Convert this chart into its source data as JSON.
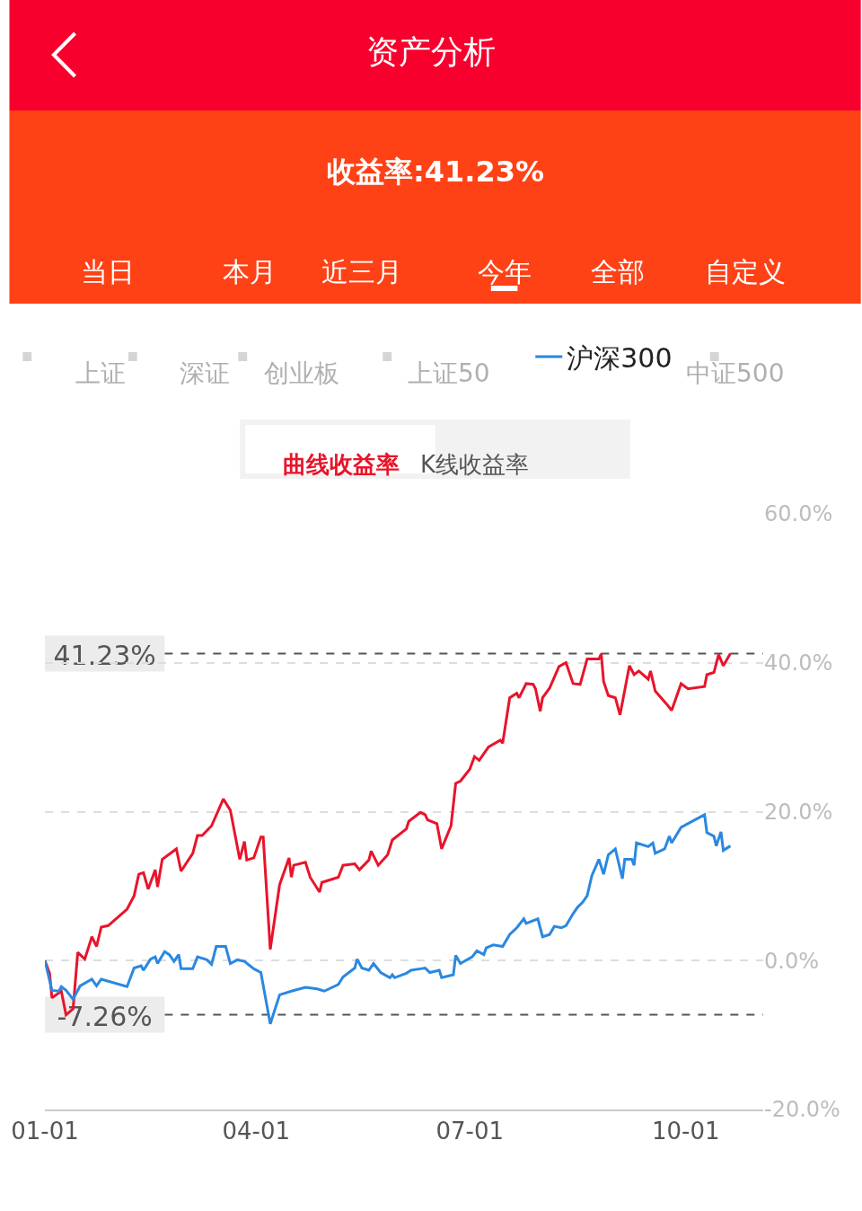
{
  "chart_data": {
    "type": "line",
    "title": "资产分析",
    "subtitle": "收益率:41.23%",
    "annotations": [
      "当日",
      "本月",
      "近三月",
      "今年",
      "全部",
      "自定义",
      "上证",
      "深证",
      "创业板",
      "上证50",
      "中证500",
      "曲线收益率",
      "K线收益率"
    ],
    "series": [
      {
        "color": "#e8142a",
        "x": [
          "--01-01",
          "--01-03",
          "--01-04",
          "--01-08",
          "--01-10",
          "--01-13",
          "--01-15",
          "--01-18",
          "--01-21",
          "--01-23",
          "--01-25",
          "--01-28",
          "--02-05",
          "--02-08",
          "--02-10",
          "--02-12",
          "--02-14",
          "--02-17",
          "--02-18",
          "--02-20",
          "--02-26",
          "--02-28",
          "--03-05",
          "--03-07",
          "--03-09",
          "--03-13",
          "--03-18",
          "--03-21",
          "--03-25",
          "--03-27",
          "--03-28",
          "--03-31",
          "--04-03",
          "--04-04",
          "--04-07",
          "--04-11",
          "--04-15",
          "--04-16",
          "--04-17",
          "--04-22",
          "--04-24",
          "--04-28",
          "--04-29",
          "--05-06",
          "--05-08",
          "--05-13",
          "--05-15",
          "--05-19",
          "--05-20",
          "--05-23",
          "--05-27",
          "--05-29",
          "--06-04",
          "--06-05",
          "--06-10",
          "--06-12",
          "--06-13",
          "--06-17",
          "--06-19",
          "--06-23",
          "--06-25",
          "--06-27",
          "--07-01",
          "--07-03",
          "--07-05",
          "--07-09",
          "--07-14",
          "--07-15",
          "--07-18",
          "--07-21",
          "--07-22",
          "--07-25",
          "--07-28",
          "--07-29",
          "--07-31",
          "--08-01",
          "--08-04",
          "--08-08",
          "--08-11",
          "--08-14",
          "--08-17",
          "--08-20",
          "--08-25",
          "--08-26",
          "--08-27",
          "--08-29",
          "--09-01",
          "--09-03",
          "--09-07",
          "--09-09",
          "--09-11",
          "--09-15",
          "--09-16",
          "--09-18",
          "--09-23",
          "--09-25",
          "--09-29",
          "--10-02",
          "--10-09",
          "--10-10",
          "--10-13",
          "--10-15",
          "--10-17",
          "--10-20"
        ],
        "values": [
          0,
          -1.7,
          -5.0,
          -4.1,
          -7.3,
          -6.5,
          1.1,
          0.2,
          3.2,
          1.9,
          4.5,
          4.7,
          6.9,
          8.7,
          11.6,
          11.8,
          9.6,
          12.2,
          9.9,
          13.6,
          15.0,
          12.0,
          14.4,
          16.8,
          16.8,
          18.1,
          21.7,
          20.2,
          13.6,
          16.0,
          13.5,
          13.8,
          16.6,
          16.6,
          1.5,
          10.2,
          13.8,
          11.2,
          12.8,
          13.2,
          11.2,
          9.2,
          10.5,
          11.2,
          12.8,
          13.0,
          12.2,
          13.5,
          14.7,
          12.8,
          14.2,
          16.2,
          17.7,
          18.7,
          19.9,
          19.6,
          18.9,
          18.4,
          15.0,
          18.1,
          23.8,
          24.1,
          25.7,
          27.4,
          26.9,
          28.7,
          29.6,
          29.2,
          35.3,
          35.9,
          35.3,
          37.2,
          37.1,
          36.5,
          33.5,
          35.3,
          36.6,
          39.5,
          40.0,
          37.2,
          37.1,
          40.5,
          40.5,
          41.2,
          37.5,
          35.6,
          35.3,
          33.0,
          39.6,
          38.4,
          38.9,
          37.8,
          38.9,
          36.2,
          34.4,
          33.6,
          37.2,
          36.5,
          36.8,
          38.4,
          38.7,
          41.1,
          39.6,
          41.23
        ]
      },
      {
        "name": "沪深300",
        "color": "#2a88e0",
        "x": [
          "--01-01",
          "--01-04",
          "--01-07",
          "--01-08",
          "--01-10",
          "--01-13",
          "--01-16",
          "--01-21",
          "--01-23",
          "--01-25",
          "--02-05",
          "--02-08",
          "--02-11",
          "--02-12",
          "--02-15",
          "--02-17",
          "--02-18",
          "--02-21",
          "--02-23",
          "--02-25",
          "--02-27",
          "--02-28",
          "--03-05",
          "--03-07",
          "--03-11",
          "--03-13",
          "--03-15",
          "--03-19",
          "--03-21",
          "--03-24",
          "--03-27",
          "--03-31",
          "--04-03",
          "--04-07",
          "--04-11",
          "--04-16",
          "--04-22",
          "--04-27",
          "--04-30",
          "--05-06",
          "--05-08",
          "--05-13",
          "--05-14",
          "--05-16",
          "--05-19",
          "--05-21",
          "--05-24",
          "--05-28",
          "--05-29",
          "--05-30",
          "--06-04",
          "--06-06",
          "--06-10",
          "--06-12",
          "--06-14",
          "--06-18",
          "--06-19",
          "--06-24",
          "--06-25",
          "--06-27",
          "--07-02",
          "--07-04",
          "--07-07",
          "--07-08",
          "--07-11",
          "--07-15",
          "--07-18",
          "--07-21",
          "--07-24",
          "--07-25",
          "--07-30",
          "--08-01",
          "--08-04",
          "--08-06",
          "--08-09",
          "--08-11",
          "--08-14",
          "--08-16",
          "--08-18",
          "--08-20",
          "--08-22",
          "--08-25",
          "--08-27",
          "--08-29",
          "--09-01",
          "--09-04",
          "--09-05",
          "--09-08",
          "--09-09",
          "--09-10",
          "--09-15",
          "--09-17",
          "--09-18",
          "--09-22",
          "--09-24",
          "--09-25",
          "--09-29",
          "--10-09",
          "--10-10",
          "--10-13",
          "--10-14",
          "--10-16",
          "--10-17",
          "--10-20"
        ],
        "values": [
          0,
          -4.0,
          -4.1,
          -3.5,
          -4.0,
          -5.2,
          -3.4,
          -2.5,
          -3.4,
          -2.5,
          -3.5,
          -1.0,
          -0.7,
          -1.3,
          0.2,
          0.5,
          -0.4,
          1.2,
          0.8,
          -0.1,
          0.8,
          -1.1,
          -1.1,
          0.5,
          0.1,
          -0.5,
          1.9,
          1.9,
          -0.4,
          0.1,
          -0.1,
          -1.1,
          -1.6,
          -8.5,
          -4.6,
          -4.1,
          -3.6,
          -3.8,
          -4.1,
          -3.2,
          -2.2,
          -1.0,
          0.2,
          -1.0,
          -1.3,
          -0.4,
          -1.6,
          -2.3,
          -1.9,
          -2.3,
          -1.7,
          -1.3,
          -1.1,
          -1.0,
          -1.6,
          -1.3,
          -2.3,
          -1.9,
          0.7,
          -0.4,
          0.5,
          1.3,
          0.8,
          1.7,
          2.1,
          1.9,
          3.5,
          4.4,
          5.6,
          5.0,
          5.6,
          3.2,
          3.5,
          4.6,
          4.4,
          4.7,
          6.3,
          7.2,
          7.8,
          8.7,
          11.4,
          13.6,
          11.6,
          14.2,
          15.0,
          11.0,
          13.6,
          13.6,
          12.8,
          15.8,
          15.3,
          15.8,
          14.4,
          15.0,
          16.7,
          15.8,
          17.9,
          19.6,
          17.2,
          16.7,
          15.4,
          17.3,
          14.8,
          15.4
        ]
      }
    ],
    "xlim": [
      "--01-01",
      "--11-03"
    ],
    "xticks": [
      {
        "value": "--01-01",
        "label": "01-01"
      },
      {
        "value": "--04-01",
        "label": "04-01"
      },
      {
        "value": "--07-01",
        "label": "07-01"
      },
      {
        "value": "--10-01",
        "label": "10-01"
      }
    ],
    "ylim": [
      -20,
      60
    ],
    "yticks": [
      {
        "value": -20,
        "label": "-20.0%"
      },
      {
        "value": 0,
        "label": "0.0%"
      },
      {
        "value": 20,
        "label": "20.0%"
      },
      {
        "value": 40,
        "label": "40.0%"
      },
      {
        "value": 60,
        "label": "60.0%"
      }
    ],
    "ref_lines": [
      {
        "axis": "y",
        "value": 41.23,
        "label": "41.23%",
        "color": "#555555",
        "line_style": "dashed"
      },
      {
        "axis": "y",
        "value": -7.26,
        "label": "-7.26%",
        "color": "#555555",
        "line_style": "dashed"
      }
    ],
    "grid": "y",
    "legend": "top",
    "marker": "none",
    "line_style": "solid"
  }
}
